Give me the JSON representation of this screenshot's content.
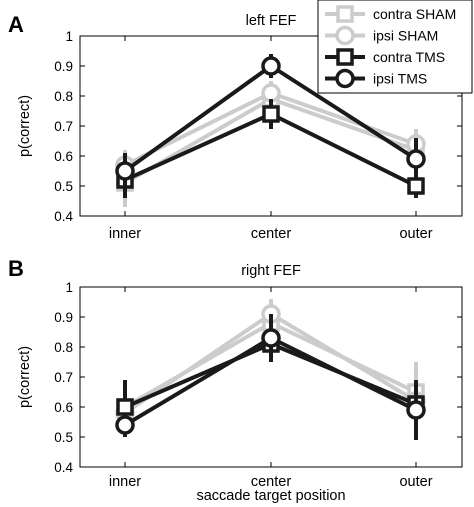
{
  "figure": {
    "xlabel": "saccade target position",
    "ylabel": "p(correct)",
    "colors": {
      "sham": "#cccccc",
      "tms": "#1a1a1a",
      "axis": "#000000"
    }
  },
  "legend": {
    "placement": "top-right",
    "entries": [
      {
        "label": "contra SHAM",
        "marker": "square",
        "color": "#cccccc"
      },
      {
        "label": "ipsi SHAM",
        "marker": "circle",
        "color": "#cccccc"
      },
      {
        "label": "contra TMS",
        "marker": "square",
        "color": "#1a1a1a"
      },
      {
        "label": "ipsi TMS",
        "marker": "circle",
        "color": "#1a1a1a"
      }
    ]
  },
  "chart_data": [
    {
      "type": "line",
      "panel_letter": "A",
      "title": "left FEF",
      "categories": [
        "inner",
        "center",
        "outer"
      ],
      "ylabel": "p(correct)",
      "xlabel": "",
      "ylim": [
        0.4,
        1.0
      ],
      "yticks": [
        "0.4",
        "0.5",
        "0.6",
        "0.7",
        "0.8",
        "0.9",
        "1"
      ],
      "grid": false,
      "series": [
        {
          "name": "contra SHAM",
          "marker": "square",
          "color": "#cccccc",
          "values": [
            0.51,
            0.79,
            0.62
          ],
          "errors": [
            0.08,
            0.04,
            0.07
          ]
        },
        {
          "name": "ipsi SHAM",
          "marker": "circle",
          "color": "#cccccc",
          "values": [
            0.57,
            0.81,
            0.64
          ],
          "errors": [
            0.05,
            0.04,
            0.05
          ]
        },
        {
          "name": "contra TMS",
          "marker": "square",
          "color": "#1a1a1a",
          "values": [
            0.52,
            0.74,
            0.5
          ],
          "errors": [
            0.06,
            0.05,
            0.04
          ]
        },
        {
          "name": "ipsi TMS",
          "marker": "circle",
          "color": "#1a1a1a",
          "values": [
            0.55,
            0.9,
            0.59
          ],
          "errors": [
            0.06,
            0.04,
            0.07
          ]
        }
      ]
    },
    {
      "type": "line",
      "panel_letter": "B",
      "title": "right FEF",
      "categories": [
        "inner",
        "center",
        "outer"
      ],
      "ylabel": "p(correct)",
      "xlabel": "saccade target position",
      "ylim": [
        0.4,
        1.0
      ],
      "yticks": [
        "0.4",
        "0.5",
        "0.6",
        "0.7",
        "0.8",
        "0.9",
        "1"
      ],
      "grid": false,
      "series": [
        {
          "name": "contra SHAM",
          "marker": "square",
          "color": "#cccccc",
          "values": [
            0.6,
            0.88,
            0.65
          ],
          "errors": [
            0.06,
            0.05,
            0.1
          ]
        },
        {
          "name": "ipsi SHAM",
          "marker": "circle",
          "color": "#cccccc",
          "values": [
            0.58,
            0.91,
            0.62
          ],
          "errors": [
            0.06,
            0.05,
            0.06
          ]
        },
        {
          "name": "contra TMS",
          "marker": "square",
          "color": "#1a1a1a",
          "values": [
            0.6,
            0.81,
            0.61
          ],
          "errors": [
            0.09,
            0.06,
            0.07
          ]
        },
        {
          "name": "ipsi TMS",
          "marker": "circle",
          "color": "#1a1a1a",
          "values": [
            0.54,
            0.83,
            0.59
          ],
          "errors": [
            0.04,
            0.08,
            0.1
          ]
        }
      ]
    }
  ]
}
